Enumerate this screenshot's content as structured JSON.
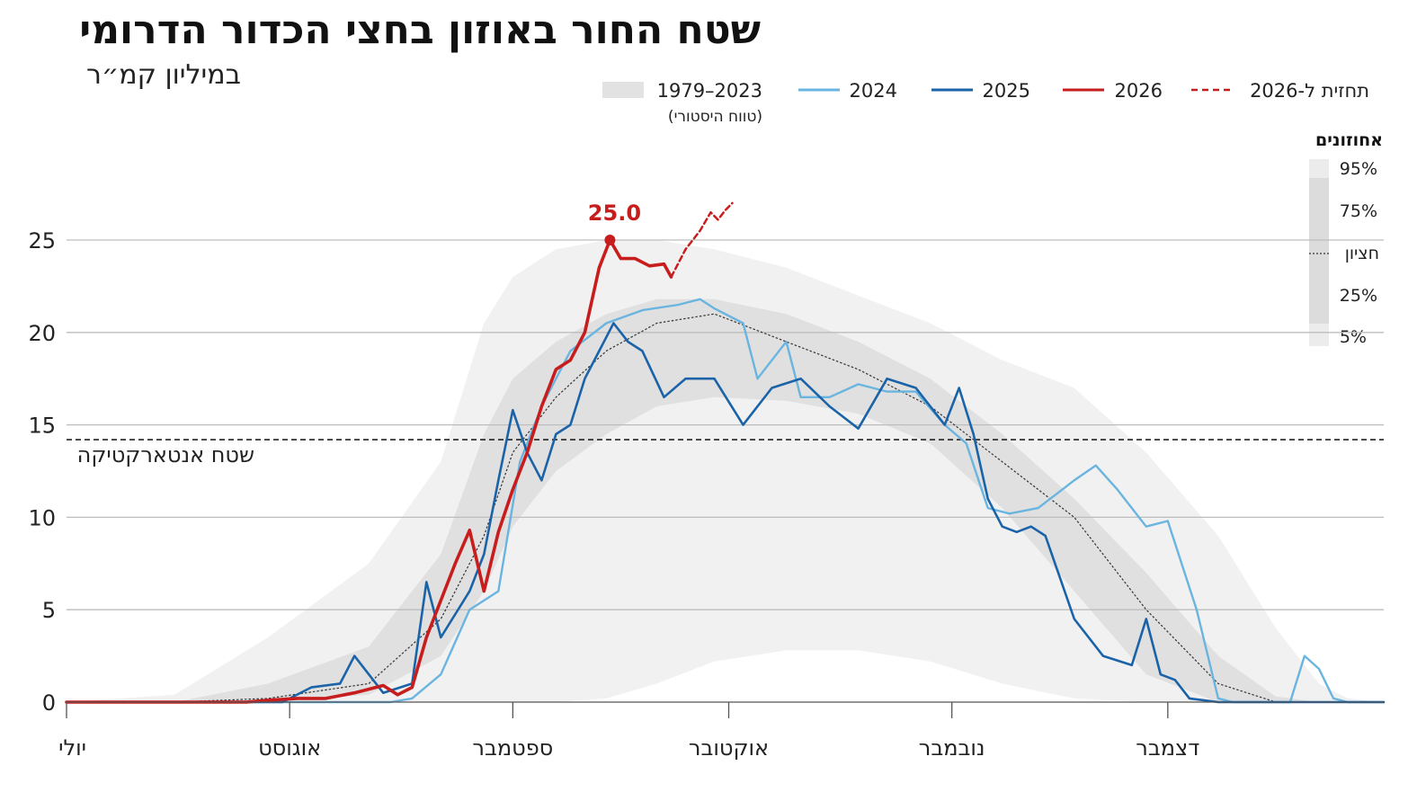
{
  "title": "שטח החור באוזון בחצי הכדור הדרומי",
  "subtitle": "במיליון קמ״ר",
  "legend": {
    "historical": "1979–2023",
    "historical_sub": "(טווח היסטורי)",
    "y2024": "2024",
    "y2025": "2025",
    "y2026": "2026",
    "forecast": "תחזית ל-2026"
  },
  "colors": {
    "y2024": "#6ab4e0",
    "y2025": "#1b63a8",
    "y2026": "#c81d1d",
    "median": "#333333",
    "band_outer": "#f1f1f1",
    "band_inner": "#e0e0e0",
    "grid": "#bdbdbd"
  },
  "percentile_legend": {
    "title": "אחוזונים",
    "p95": "95%",
    "p75": "75%",
    "median": "חציון",
    "p25": "25%",
    "p5": "5%"
  },
  "peak_label": "25.0",
  "reference_line_label": "שטח אנטארקטיקה",
  "chart_data": {
    "type": "line",
    "x_unit": "day of year (Jul 1 = 0)",
    "ylim": [
      0,
      27.5
    ],
    "xlim": [
      0,
      183
    ],
    "yticks": [
      0,
      5,
      10,
      15,
      20,
      25
    ],
    "ytick_labels": [
      "0",
      "5",
      "10",
      "15",
      "20",
      "25"
    ],
    "xticks": [
      0,
      31,
      62,
      92,
      123,
      153
    ],
    "xtick_labels": [
      "יולי",
      "אוגוסט",
      "ספטמבר",
      "אוקטובר",
      "נובמבר",
      "דצמבר"
    ],
    "reference_line": {
      "value": 14.2,
      "label": "שטח אנטארקטיקה"
    },
    "bands": {
      "x": [
        0,
        15,
        28,
        42,
        52,
        58,
        62,
        68,
        75,
        82,
        90,
        100,
        110,
        120,
        130,
        140,
        150,
        160,
        168,
        174,
        178,
        183
      ],
      "p5": [
        0,
        0,
        0,
        0,
        0,
        0,
        0,
        0,
        0.2,
        1,
        2.2,
        2.8,
        2.8,
        2.2,
        1,
        0.2,
        0,
        0,
        0,
        0,
        0,
        0
      ],
      "p95": [
        0,
        0.4,
        3.5,
        7.5,
        13,
        20.5,
        23,
        24.5,
        25,
        25,
        24.5,
        23.5,
        22,
        20.5,
        18.5,
        17,
        13.5,
        9,
        4,
        1,
        0.2,
        0
      ],
      "p25": [
        0,
        0,
        0,
        0.4,
        2.5,
        6,
        9.5,
        12.5,
        14.5,
        16,
        16.5,
        16.3,
        15.6,
        14,
        10.5,
        6,
        1.5,
        0,
        0,
        0,
        0,
        0
      ],
      "p75": [
        0,
        0,
        1,
        3,
        8,
        14.5,
        17.5,
        19.5,
        21,
        21.8,
        21.8,
        21,
        19.5,
        17.5,
        14.5,
        11,
        7,
        2.5,
        0.3,
        0,
        0,
        0
      ],
      "median": [
        0,
        0,
        0.2,
        1,
        4.5,
        9,
        13.5,
        16.5,
        19,
        20.5,
        21,
        19.5,
        18,
        16,
        13,
        10,
        5,
        1,
        0,
        0,
        0,
        0
      ]
    },
    "series": [
      {
        "name": "2024",
        "x": [
          0,
          30,
          45,
          48,
          52,
          56,
          60,
          63,
          66,
          70,
          75,
          80,
          85,
          88,
          90,
          94,
          96,
          100,
          102,
          106,
          110,
          114,
          118,
          122,
          125,
          128,
          131,
          135,
          140,
          143,
          146,
          150,
          153,
          157,
          160,
          162,
          166,
          170,
          172,
          174,
          176,
          178,
          180,
          183
        ],
        "y": [
          0,
          0,
          0,
          0.2,
          1.5,
          5,
          6,
          13,
          16,
          19,
          20.5,
          21.2,
          21.5,
          21.8,
          21.3,
          20.5,
          17.5,
          19.5,
          16.5,
          16.5,
          17.2,
          16.8,
          16.8,
          15,
          14,
          10.5,
          10.2,
          10.5,
          12,
          12.8,
          11.5,
          9.5,
          9.8,
          5,
          0.2,
          0,
          0,
          0,
          2.5,
          1.8,
          0.2,
          0,
          0,
          0
        ]
      },
      {
        "name": "2025",
        "x": [
          0,
          30,
          34,
          38,
          40,
          44,
          48,
          50,
          52,
          56,
          58,
          60,
          62,
          64,
          66,
          68,
          70,
          72,
          74,
          76,
          78,
          80,
          83,
          86,
          90,
          94,
          98,
          102,
          106,
          110,
          114,
          118,
          122,
          124,
          126,
          128,
          130,
          132,
          134,
          136,
          140,
          144,
          148,
          150,
          152,
          154,
          156,
          160,
          183
        ],
        "y": [
          0,
          0,
          0.8,
          1,
          2.5,
          0.5,
          1,
          6.5,
          3.5,
          6,
          8,
          12,
          15.8,
          13.5,
          12,
          14.5,
          15,
          17.5,
          19,
          20.5,
          19.5,
          19,
          16.5,
          17.5,
          17.5,
          15,
          17,
          17.5,
          16,
          14.8,
          17.5,
          17,
          15,
          17,
          14.5,
          11,
          9.5,
          9.2,
          9.5,
          9,
          4.5,
          2.5,
          2,
          4.5,
          1.5,
          1.2,
          0.2,
          0,
          0
        ]
      },
      {
        "name": "2026",
        "x": [
          0,
          25,
          28,
          32,
          36,
          40,
          44,
          46,
          48,
          50,
          52,
          54,
          56,
          58,
          60,
          62,
          64,
          66,
          68,
          70,
          72,
          74,
          75.5,
          77,
          79,
          81,
          83,
          84
        ],
        "y": [
          0,
          0,
          0.1,
          0.2,
          0.2,
          0.5,
          0.9,
          0.4,
          0.8,
          3.5,
          5.5,
          7.5,
          9.3,
          6,
          9.2,
          11.5,
          13.5,
          16,
          18,
          18.5,
          20,
          23.5,
          25,
          24,
          24,
          23.6,
          23.7,
          23
        ]
      },
      {
        "name": "תחזית ל-2026",
        "x": [
          84,
          86,
          88,
          89.5,
          90.5,
          91.5,
          92.5
        ],
        "y": [
          23,
          24.5,
          25.5,
          26.5,
          26.1,
          26.6,
          27
        ]
      }
    ],
    "peak": {
      "x": 75.5,
      "y": 25.0
    }
  }
}
